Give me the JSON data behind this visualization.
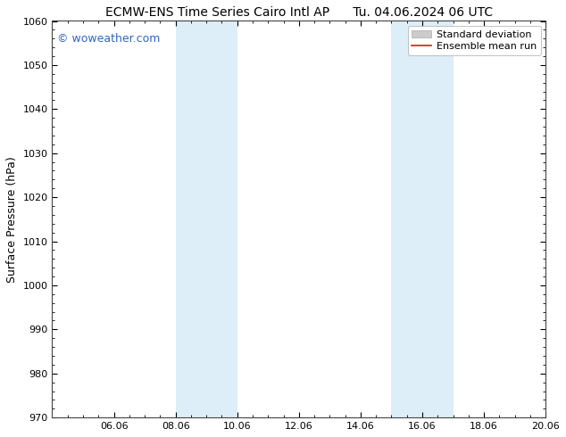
{
  "title_left": "ECMW-ENS Time Series Cairo Intl AP",
  "title_right": "Tu. 04.06.2024 06 UTC",
  "ylabel": "Surface Pressure (hPa)",
  "ylim": [
    970,
    1060
  ],
  "yticks": [
    970,
    980,
    990,
    1000,
    1010,
    1020,
    1030,
    1040,
    1050,
    1060
  ],
  "xtick_labels": [
    "06.06",
    "08.06",
    "10.06",
    "12.06",
    "14.06",
    "16.06",
    "18.06",
    "20.06"
  ],
  "xtick_positions": [
    2,
    4,
    6,
    8,
    10,
    12,
    14,
    16
  ],
  "xlim": [
    0,
    16
  ],
  "shaded_bands": [
    {
      "x_start": 4.0,
      "x_end": 6.0
    },
    {
      "x_start": 11.0,
      "x_end": 13.0
    }
  ],
  "shaded_color": "#ddeef8",
  "watermark_text": "© woweather.com",
  "watermark_color": "#3366bb",
  "legend_std_dev_color": "#cccccc",
  "legend_std_dev_edge": "#aaaaaa",
  "legend_mean_color": "#cc2200",
  "background_color": "#ffffff",
  "title_fontsize": 10,
  "label_fontsize": 9,
  "tick_fontsize": 8,
  "watermark_fontsize": 9,
  "legend_fontsize": 8
}
